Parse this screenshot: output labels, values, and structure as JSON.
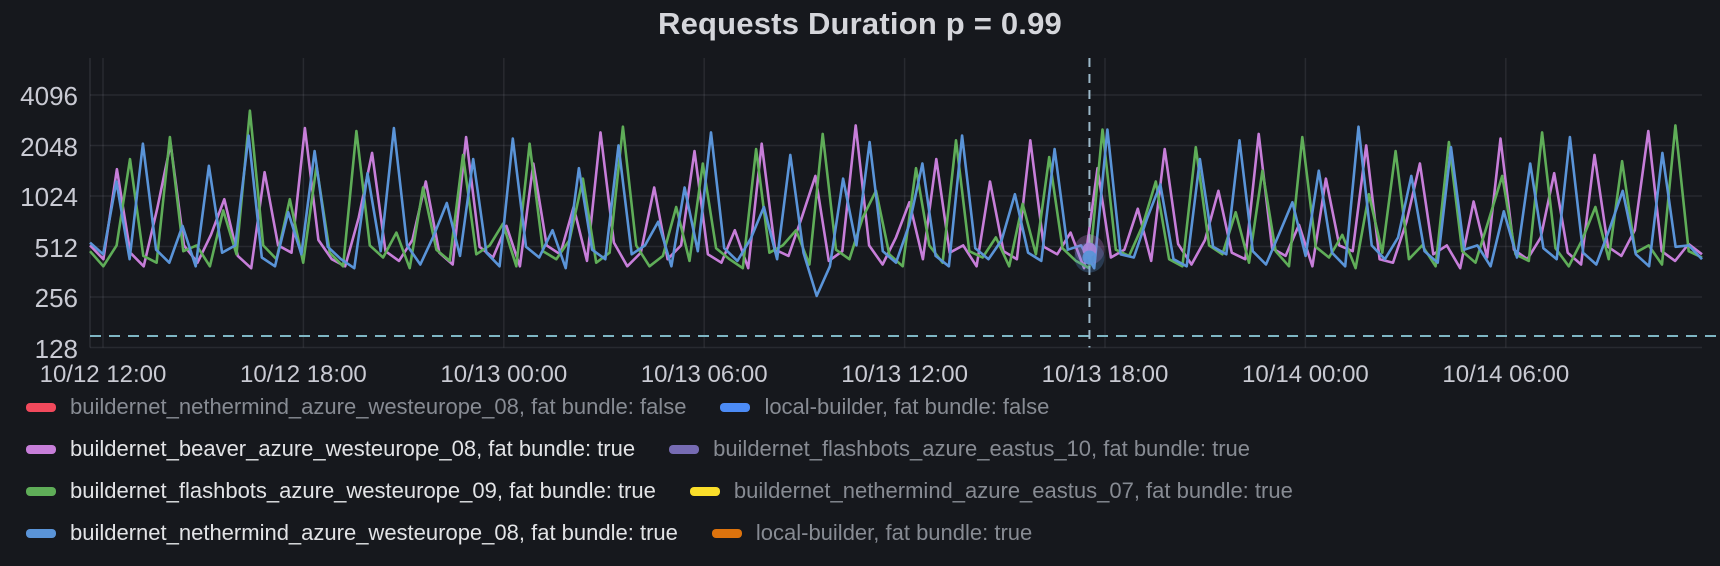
{
  "panel": {
    "title": "Requests Duration p = 0.99"
  },
  "colors": {
    "background": "#16181d",
    "grid": "rgba(204,204,220,0.10)",
    "axis_text": "#c9cad3",
    "threshold_line": "#7fb6c4",
    "crosshair_line": "#9cb9c9"
  },
  "chart_data": {
    "type": "line",
    "title": "Requests Duration p = 0.99",
    "y_scale": "log2",
    "ylim": [
      128,
      4096
    ],
    "y_ticks": [
      "4096",
      "2048",
      "1024",
      "512",
      "256",
      "128"
    ],
    "x_ticks": [
      "10/12 12:00",
      "10/12 18:00",
      "10/13 00:00",
      "10/13 06:00",
      "10/13 12:00",
      "10/13 18:00",
      "10/14 00:00",
      "10/14 06:00"
    ],
    "grid": "on",
    "legend_position": "bottom",
    "threshold_line": {
      "value": 150,
      "style": "dashed"
    },
    "crosshair": {
      "position_fraction": 0.62,
      "near_tick": "10/13 18:00",
      "style": "dashed"
    },
    "hover_points": [
      {
        "series_index": 2,
        "value": 490
      },
      {
        "series_index": 6,
        "value": 440
      }
    ],
    "series": [
      {
        "label": "buildernet_nethermind_azure_westeurope_08, fat bundle: false",
        "color": "#f2495c",
        "selected": false,
        "values": []
      },
      {
        "label": "local-builder, fat bundle: false",
        "color": "#4c8bf5",
        "selected": false,
        "values": []
      },
      {
        "label": "buildernet_beaver_azure_westeurope_08, fat bundle: true",
        "color": "#c77ed9",
        "selected": true,
        "values": [
          520,
          430,
          1480,
          470,
          390,
          860,
          2100,
          520,
          410,
          600,
          980,
          450,
          380,
          1420,
          520,
          470,
          2600,
          560,
          430,
          390,
          760,
          1850,
          480,
          420,
          560,
          1250,
          470,
          400,
          2300,
          510,
          440,
          680,
          390,
          1600,
          520,
          460,
          880,
          420,
          2450,
          540,
          390,
          470,
          1150,
          430,
          520,
          1900,
          460,
          410,
          640,
          380,
          2100,
          490,
          450,
          770,
          1350,
          420,
          480,
          2700,
          520,
          400,
          580,
          940,
          430,
          1700,
          470,
          520,
          390,
          1250,
          480,
          430,
          2200,
          510,
          460,
          620,
          380,
          1500,
          440,
          490,
          860,
          420,
          1950,
          530,
          400,
          560,
          1100,
          470,
          430,
          2400,
          500,
          450,
          690,
          390,
          1300,
          520,
          480,
          2050,
          430,
          410,
          720,
          1600,
          460,
          520,
          380,
          950,
          440,
          2250,
          490,
          430,
          580,
          1400,
          470,
          400,
          1800,
          510,
          450,
          640,
          2500,
          480,
          420,
          530,
          460
        ]
      },
      {
        "label": "buildernet_flashbots_azure_eastus_10, fat bundle: true",
        "color": "#766bb3",
        "selected": false,
        "values": []
      },
      {
        "label": "buildernet_flashbots_azure_westeurope_09, fat bundle: true",
        "color": "#5fad58",
        "selected": true,
        "values": [
          480,
          390,
          520,
          1700,
          450,
          410,
          2300,
          480,
          520,
          390,
          840,
          460,
          3300,
          520,
          430,
          980,
          410,
          1550,
          470,
          390,
          2500,
          520,
          440,
          620,
          380,
          1150,
          490,
          420,
          1800,
          460,
          520,
          700,
          390,
          2100,
          480,
          430,
          560,
          1300,
          410,
          470,
          2650,
          520,
          390,
          450,
          880,
          420,
          1600,
          500,
          430,
          380,
          1950,
          470,
          520,
          640,
          400,
          2400,
          490,
          430,
          760,
          1100,
          460,
          390,
          1500,
          520,
          410,
          2200,
          480,
          440,
          580,
          390,
          920,
          460,
          1750,
          500,
          420,
          380,
          2550,
          490,
          450,
          680,
          1250,
          430,
          390,
          2000,
          520,
          460,
          820,
          410,
          1450,
          480,
          390,
          2300,
          510,
          440,
          600,
          380,
          1050,
          470,
          1900,
          430,
          520,
          390,
          2150,
          480,
          410,
          740,
          1350,
          460,
          420,
          2450,
          500,
          390,
          560,
          880,
          430,
          1650,
          470,
          520,
          400,
          2700,
          480,
          440
        ]
      },
      {
        "label": "buildernet_nethermind_azure_eastus_07, fat bundle: true",
        "color": "#fade2a",
        "selected": false,
        "values": []
      },
      {
        "label": "buildernet_nethermind_azure_westeurope_08, fat bundle: true",
        "color": "#5a94d8",
        "selected": true,
        "values": [
          540,
          460,
          1250,
          430,
          2100,
          490,
          410,
          680,
          390,
          1550,
          470,
          520,
          2350,
          440,
          390,
          820,
          460,
          1900,
          510,
          430,
          380,
          1400,
          480,
          2600,
          520,
          400,
          590,
          930,
          450,
          1700,
          470,
          390,
          2250,
          510,
          440,
          640,
          380,
          1500,
          490,
          430,
          2050,
          460,
          520,
          720,
          390,
          1150,
          480,
          2450,
          500,
          420,
          570,
          880,
          430,
          1800,
          470,
          260,
          390,
          1300,
          520,
          2150,
          480,
          410,
          690,
          1600,
          450,
          390,
          2350,
          500,
          430,
          560,
          1050,
          470,
          420,
          1950,
          490,
          520,
          380,
          2550,
          460,
          440,
          750,
          1200,
          430,
          390,
          1700,
          510,
          460,
          2200,
          480,
          400,
          610,
          940,
          450,
          1450,
          470,
          390,
          2650,
          520,
          430,
          580,
          1350,
          480,
          410,
          2000,
          490,
          520,
          390,
          830,
          440,
          1600,
          500,
          430,
          2300,
          470,
          400,
          650,
          1100,
          460,
          390,
          1850,
          510,
          520,
          430
        ]
      },
      {
        "label": "local-builder, fat bundle: true",
        "color": "#dd730d",
        "selected": false,
        "values": []
      }
    ]
  }
}
